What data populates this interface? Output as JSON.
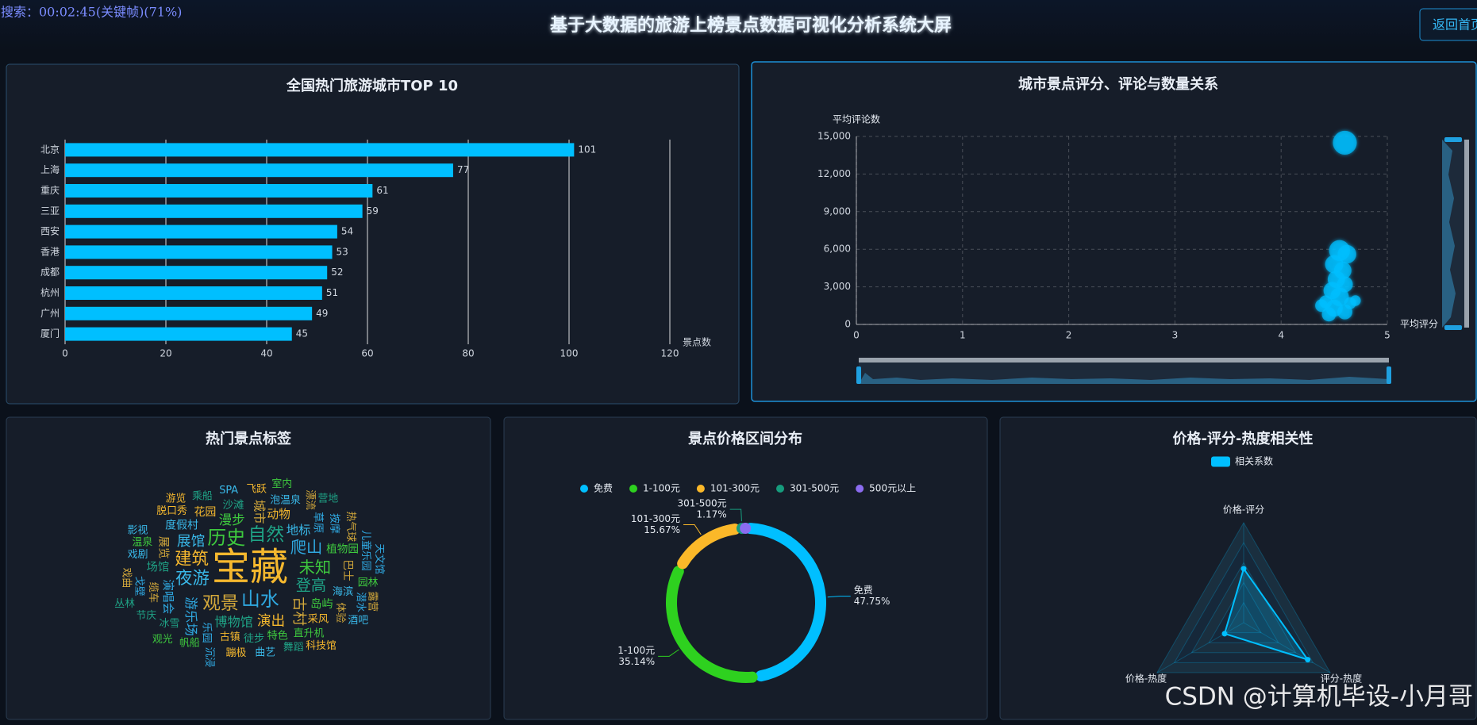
{
  "header": {
    "title": "基于大数据的旅游上榜景点数据可视化分析系统大屏",
    "button": "返回首页",
    "overlay": "搜索：00:02:45(关键帧)(71%)"
  },
  "watermark": "CSDN @计算机毕设-小月哥",
  "chart_data": [
    {
      "type": "bar",
      "title": "全国热门旅游城市TOP 10",
      "x_label": "景点数",
      "categories": [
        "北京",
        "上海",
        "重庆",
        "三亚",
        "西安",
        "香港",
        "成都",
        "杭州",
        "广州",
        "厦门"
      ],
      "values": [
        101,
        77,
        61,
        59,
        54,
        53,
        52,
        51,
        49,
        45
      ],
      "color": "#00bfff",
      "xlim": [
        0,
        120
      ],
      "xticks": [
        0,
        20,
        40,
        60,
        80,
        100,
        120
      ],
      "grid": true
    },
    {
      "type": "scatter",
      "title": "城市景点评分、评论与数量关系",
      "x_label": "平均评分",
      "y_label": "平均评论数",
      "x": [
        4.6,
        4.55,
        4.62,
        4.5,
        4.58,
        4.52,
        4.6,
        4.48,
        4.55,
        4.42,
        4.65,
        4.5,
        4.6,
        4.45,
        4.7,
        4.38
      ],
      "values": [
        14500,
        5900,
        5600,
        4800,
        4300,
        3600,
        3200,
        2700,
        2200,
        1800,
        1700,
        1300,
        1000,
        800,
        1900,
        1500
      ],
      "sizes": [
        101,
        77,
        61,
        59,
        54,
        53,
        45,
        52,
        61,
        30,
        25,
        51,
        40,
        35,
        20,
        28
      ],
      "color": "#00bfff",
      "xlim": [
        0,
        5
      ],
      "xticks": [
        0,
        1,
        2,
        3,
        4,
        5
      ],
      "ylim": [
        0,
        15000
      ],
      "yticks": [
        0,
        {
          "value": 3000,
          "label": "3,000"
        },
        {
          "value": 6000,
          "label": "6,000"
        },
        {
          "value": 9000,
          "label": "9,000"
        },
        {
          "value": 12000,
          "label": "12,000"
        },
        {
          "value": 15000,
          "label": "15,000"
        }
      ],
      "grid": true
    },
    {
      "type": "wordcloud",
      "title": "热门景点标签",
      "words": [
        "宝藏",
        "山水",
        "历史",
        "自然",
        "观景",
        "夜游",
        "建筑",
        "爬山",
        "未知",
        "登高",
        "古村",
        "展馆",
        "演出",
        "游乐场",
        "漫步",
        "博物馆",
        "城市",
        "地标",
        "动物",
        "演唱会",
        "岛屿",
        "场馆",
        "展览",
        "度假村",
        "花园",
        "草原",
        "植物园",
        "沙滩",
        "巴士",
        "海滨",
        "采风",
        "乐园",
        "特色",
        "徒步",
        "缆车",
        "泡温泉",
        "古镇",
        "按摩",
        "直升机",
        "冰雪",
        "体验",
        "戏剧",
        "脱口秀",
        "戈壁",
        "温泉",
        "乘船",
        "漂流",
        "SPA",
        "飞跃",
        "儿童乐园",
        "园林",
        "舞蹈",
        "热气球",
        "曲艺",
        "蹦极",
        "潜水",
        "帆船",
        "节庆",
        "戏曲",
        "影视",
        "游览",
        "天文馆",
        "室内",
        "营地",
        "露营",
        "酒吧",
        "科技馆",
        "沉浸",
        "观光",
        "丛林"
      ],
      "values": [
        100,
        35,
        35,
        32,
        32,
        28,
        28,
        25,
        25,
        22,
        20,
        18,
        18,
        15,
        15,
        14,
        12,
        12,
        10,
        10,
        9,
        9,
        9,
        8,
        8,
        7,
        7,
        7,
        7,
        6,
        6,
        6,
        6,
        6,
        6,
        5,
        5,
        5,
        5,
        5,
        5,
        5,
        5,
        5,
        5,
        5,
        5,
        5,
        5,
        5,
        5,
        5,
        5,
        5,
        5,
        5,
        5,
        5,
        5,
        5,
        5,
        5,
        5,
        5,
        5,
        5,
        5,
        5,
        5,
        5
      ],
      "colors": [
        "#f5b82e",
        "#2fa8e0",
        "#3ec93e",
        "#1fa386",
        "#d4a93b",
        "#39b8e8"
      ]
    },
    {
      "type": "pie",
      "title": "景点价格区间分布",
      "categories": [
        "免费",
        "1-100元",
        "101-300元",
        "301-500元",
        "500元以上"
      ],
      "values": [
        47.75,
        35.14,
        15.67,
        1.17,
        0.27
      ],
      "value_labels": [
        "47.75%",
        "35.14%",
        "15.67%",
        "1.17%",
        null
      ],
      "colors": [
        "#00bfff",
        "#2ed11f",
        "#fbb829",
        "#169c7d",
        "#8b6cf0"
      ],
      "legend": "top"
    },
    {
      "type": "radar",
      "title": "价格-评分-热度相关性",
      "indicators": [
        "价格-评分",
        "评分-热度",
        "价格-热度"
      ],
      "rlim": [
        0,
        1
      ],
      "series": [
        {
          "name": "相关系数",
          "color": "#00bfff",
          "values": [
            0.54,
            0.74,
            0.22
          ]
        }
      ],
      "legend": "top"
    }
  ]
}
